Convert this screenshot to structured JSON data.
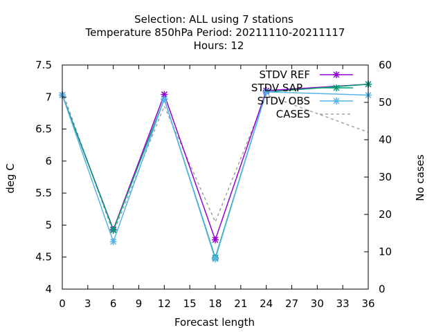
{
  "chart_data": {
    "type": "line",
    "title_lines": [
      "Selection: ALL using     7 stations",
      "Temperature 850hPa   Period: 20211110-20211117",
      "Hours:  12"
    ],
    "xlabel": "Forecast length",
    "ylabel": "deg C",
    "y2label": "No cases",
    "xlim": [
      0,
      36
    ],
    "ylim": [
      4,
      7.5
    ],
    "y2lim": [
      0,
      60
    ],
    "xticks": [
      "0",
      "3",
      "6",
      "9",
      "12",
      "15",
      "18",
      "21",
      "24",
      "27",
      "30",
      "33",
      "36"
    ],
    "yticks": [
      "4",
      "4.5",
      "5",
      "5.5",
      "6",
      "6.5",
      "7",
      "7.5"
    ],
    "y2ticks": [
      "0",
      "10",
      "20",
      "30",
      "40",
      "50",
      "60"
    ],
    "x": [
      0,
      6,
      12,
      18,
      24,
      36
    ],
    "legend_position": "top-right",
    "series": [
      {
        "name": "STDV REF",
        "axis": "y1",
        "color": "#9400d3",
        "values": [
          7.03,
          4.93,
          7.04,
          4.77,
          7.1,
          7.2
        ]
      },
      {
        "name": "STDV SAP",
        "axis": "y1",
        "color": "#009e73",
        "values": [
          7.03,
          4.92,
          6.97,
          4.49,
          7.08,
          7.2
        ]
      },
      {
        "name": "STDV OBS",
        "axis": "y1",
        "color": "#56b4e9",
        "values": [
          7.03,
          4.74,
          6.97,
          4.47,
          7.08,
          7.03
        ]
      },
      {
        "name": "CASES",
        "axis": "y2",
        "color": "#a0a0a0",
        "dashed": true,
        "values": [
          53,
          15,
          49,
          18,
          52,
          42
        ]
      }
    ]
  }
}
